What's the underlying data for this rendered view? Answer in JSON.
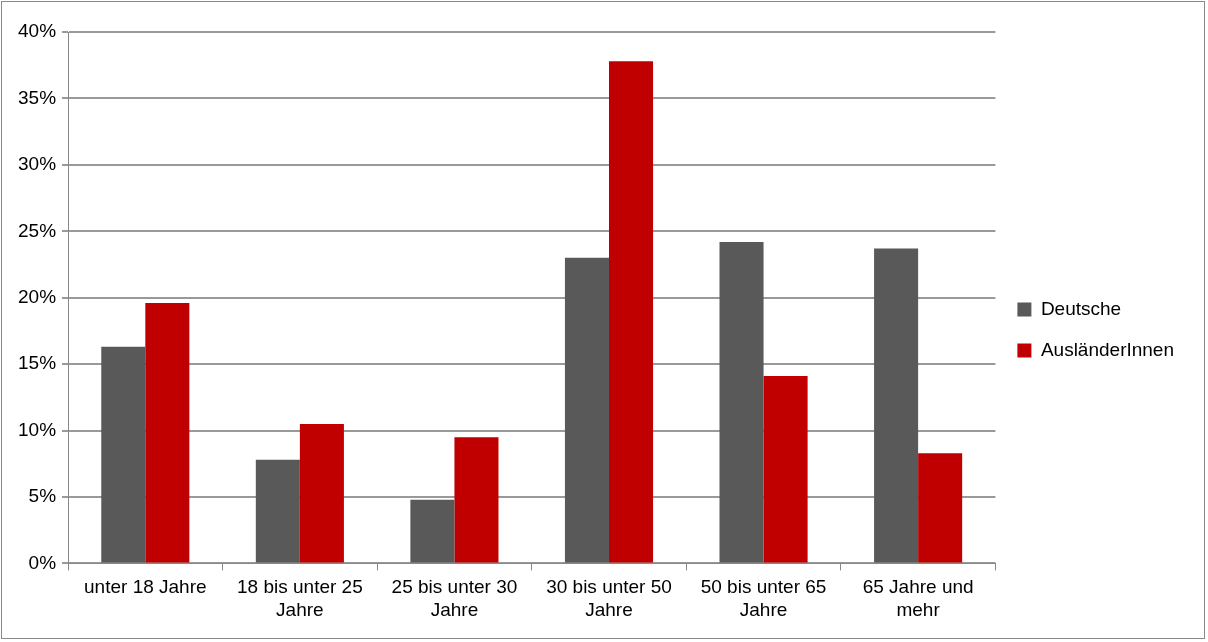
{
  "chart_data": {
    "type": "bar",
    "categories": [
      "unter 18 Jahre",
      "18 bis unter 25 Jahre",
      "25 bis unter 30 Jahre",
      "30 bis unter 50 Jahre",
      "50 bis unter 65 Jahre",
      "65 Jahre und mehr"
    ],
    "series": [
      {
        "name": "Deutsche",
        "color": "#595959",
        "values": [
          16.3,
          7.8,
          4.8,
          23.0,
          24.2,
          23.7
        ]
      },
      {
        "name": "AusländerInnen",
        "color": "#c00000",
        "values": [
          19.6,
          10.5,
          9.5,
          37.8,
          14.1,
          8.3
        ]
      }
    ],
    "ylim": [
      0,
      40
    ],
    "yticks": [
      {
        "value": 0,
        "label": "0%"
      },
      {
        "value": 5,
        "label": "5%"
      },
      {
        "value": 10,
        "label": "10%"
      },
      {
        "value": 15,
        "label": "15%"
      },
      {
        "value": 20,
        "label": "20%"
      },
      {
        "value": 25,
        "label": "25%"
      },
      {
        "value": 30,
        "label": "30%"
      },
      {
        "value": 35,
        "label": "35%"
      },
      {
        "value": 40,
        "label": "40%"
      }
    ],
    "grid": "y",
    "legend": "right"
  }
}
